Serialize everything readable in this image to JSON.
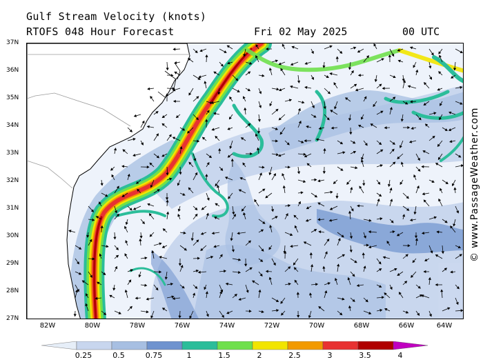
{
  "header": {
    "title": "Gulf Stream Velocity (knots)",
    "model_line": "RTOFS 048 Hour Forecast",
    "forecast_date": "Fri 02 May 2025",
    "forecast_time": "00 UTC"
  },
  "watermark": "© www.PassageWeather.com",
  "map": {
    "projection_extent": {
      "lon_min": -83.0,
      "lon_max": -63.5,
      "lat_min": 27,
      "lat_max": 37
    },
    "lat_ticks": [
      "37N",
      "36N",
      "35N",
      "34N",
      "33N",
      "32N",
      "31N",
      "30N",
      "29N",
      "28N",
      "27N"
    ],
    "lat_values": [
      37,
      36,
      35,
      34,
      33,
      32,
      31,
      30,
      29,
      28,
      27
    ],
    "lon_ticks": [
      "82W",
      "80W",
      "78W",
      "76W",
      "74W",
      "72W",
      "70W",
      "68W",
      "66W",
      "64W"
    ],
    "lon_values": [
      -82,
      -80,
      -78,
      -76,
      -74,
      -72,
      -70,
      -68,
      -66,
      -64
    ],
    "land_color": "#ffffff",
    "coastline_color": "#000000",
    "state_line_color": "#9a9a9a"
  },
  "colorbar": {
    "levels": [
      "0.25",
      "0.5",
      "0.75",
      "1",
      "1.5",
      "2",
      "2.5",
      "3",
      "3.5",
      "4"
    ],
    "colors": [
      "#e6eef8",
      "#c8d6ee",
      "#a7bfe2",
      "#6f93cf",
      "#2bbd9a",
      "#6fe04c",
      "#f2e500",
      "#f29a00",
      "#e83232",
      "#b00000",
      "#c000c0"
    ]
  }
}
